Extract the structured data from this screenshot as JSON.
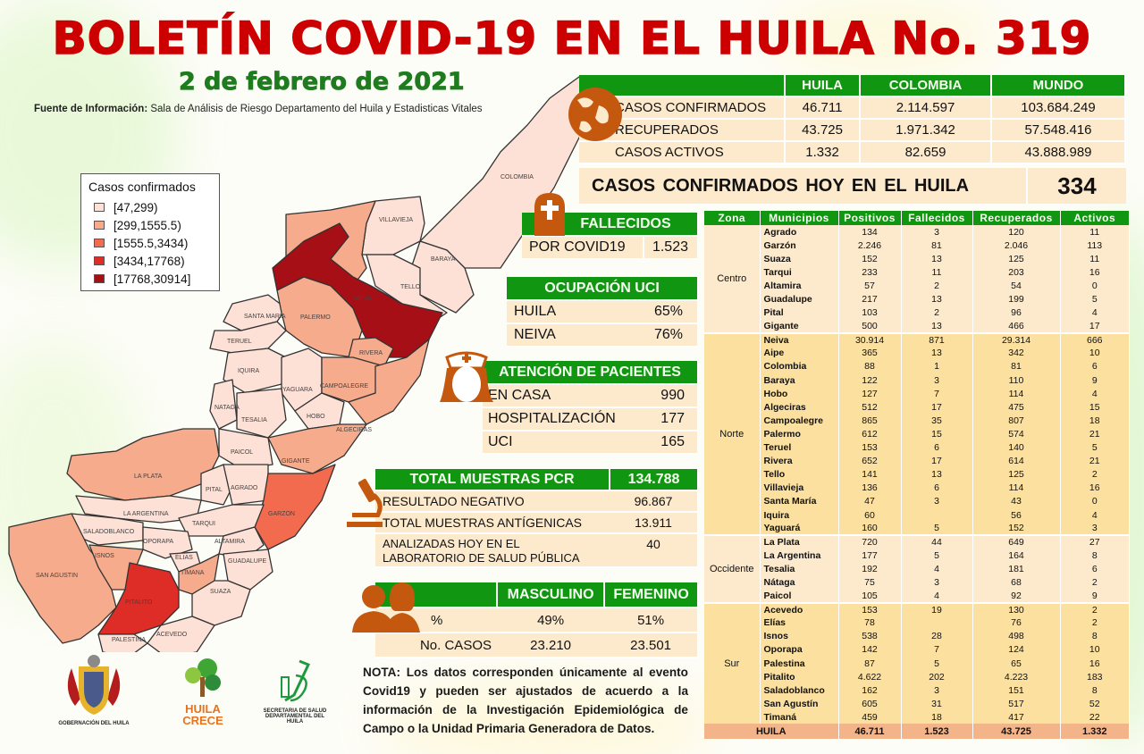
{
  "header": {
    "title": "BOLETÍN COVID-19 EN EL HUILA No. 319",
    "date": "2 de febrero de 2021",
    "source_label": "Fuente de Información:",
    "source_text": "Sala de Análisis de Riesgo Departamento del Huila y Estadisticas Vitales"
  },
  "colors": {
    "title_red": "#cc0000",
    "date_green": "#1e7b1e",
    "header_green": "#119611",
    "cream": "#fdeacc",
    "cream_dark": "#fbe0a0",
    "total_row": "#f4b48a",
    "icon_brown": "#c4580f"
  },
  "summary": {
    "columns": [
      "",
      "HUILA",
      "COLOMBIA",
      "MUNDO"
    ],
    "rows": [
      {
        "label": "CASOS CONFIRMADOS",
        "huila": "46.711",
        "colombia": "2.114.597",
        "mundo": "103.684.249"
      },
      {
        "label": "RECUPERADOS",
        "huila": "43.725",
        "colombia": "1.971.342",
        "mundo": "57.548.416"
      },
      {
        "label": "CASOS ACTIVOS",
        "huila": "1.332",
        "colombia": "82.659",
        "mundo": "43.888.989"
      }
    ],
    "today_label": "CASOS CONFIRMADOS  HOY EN EL HUILA",
    "today_value": "334"
  },
  "fallecidos": {
    "title": "FALLECIDOS",
    "label": "POR COVID19",
    "value": "1.523"
  },
  "uci": {
    "title": "OCUPACIÓN  UCI",
    "rows": [
      {
        "label": "HUILA",
        "value": "65%"
      },
      {
        "label": "NEIVA",
        "value": "76%"
      }
    ]
  },
  "atencion": {
    "title": "ATENCIÓN DE PACIENTES",
    "rows": [
      {
        "label": "EN CASA",
        "value": "990"
      },
      {
        "label": "HOSPITALIZACIÓN",
        "value": "177"
      },
      {
        "label": "UCI",
        "value": "165"
      }
    ]
  },
  "pcr": {
    "title": "TOTAL MUESTRAS  PCR",
    "total": "134.788",
    "rows": [
      {
        "label": "RESULTADO  NEGATIVO",
        "value": "96.867"
      },
      {
        "label": "TOTAL  MUESTRAS  ANTÍGENICAS",
        "value": "13.911"
      },
      {
        "label": "ANALIZADAS HOY EN EL",
        "label2": "LABORATORIO DE SALUD  PÚBLICA",
        "value": "40"
      }
    ]
  },
  "sexo": {
    "columns": [
      "",
      "MASCULINO",
      "FEMENINO"
    ],
    "rows": [
      {
        "label": "%",
        "masculino": "49%",
        "femenino": "51%"
      },
      {
        "label": "No. CASOS",
        "masculino": "23.210",
        "femenino": "23.501"
      }
    ]
  },
  "legend": {
    "title": "Casos confirmados",
    "items": [
      {
        "label": "[47,299)",
        "color": "#fde0d6"
      },
      {
        "label": "[299,1555.5)",
        "color": "#f6ab8d"
      },
      {
        "label": "[1555.5,3434)",
        "color": "#f26b4f"
      },
      {
        "label": "[3434,17768)",
        "color": "#de2c26"
      },
      {
        "label": "[17768,30914]",
        "color": "#a50f15"
      }
    ]
  },
  "map_labels": [
    "COLOMBIA",
    "VILLAVIEJA",
    "BARAYA",
    "TELLO",
    "NEIVA",
    "SANTA MARIA",
    "PALERMO",
    "TERUEL",
    "RIVERA",
    "IQUIRA",
    "YAGUARA",
    "CAMPOALEGRE",
    "NATAGA",
    "TESALIA",
    "HOBO",
    "ALGECIRAS",
    "PAICOL",
    "GIGANTE",
    "LA PLATA",
    "PITAL",
    "AGRADO",
    "GARZON",
    "LA ARGENTINA",
    "TARQUI",
    "SALADOBLANCO",
    "OPORAPA",
    "ALTAMIRA",
    "ISNOS",
    "ELIAS",
    "TIMANA",
    "GUADALUPE",
    "SAN AGUSTIN",
    "SUAZA",
    "PITALITO",
    "ACEVEDO",
    "PALESTINA",
    "AIPE"
  ],
  "municipios": {
    "columns": [
      "Zona",
      "Municipios",
      "Positivos",
      "Fallecidos",
      "Recuperados",
      "Activos"
    ],
    "zones": [
      {
        "zone": "Centro",
        "rows": [
          [
            "Agrado",
            "134",
            "3",
            "120",
            "11"
          ],
          [
            "Garzón",
            "2.246",
            "81",
            "2.046",
            "113"
          ],
          [
            "Suaza",
            "152",
            "13",
            "125",
            "11"
          ],
          [
            "Tarqui",
            "233",
            "11",
            "203",
            "16"
          ],
          [
            "Altamira",
            "57",
            "2",
            "54",
            "0"
          ],
          [
            "Guadalupe",
            "217",
            "13",
            "199",
            "5"
          ],
          [
            "Pital",
            "103",
            "2",
            "96",
            "4"
          ],
          [
            "Gigante",
            "500",
            "13",
            "466",
            "17"
          ]
        ]
      },
      {
        "zone": "Norte",
        "rows": [
          [
            "Neiva",
            "30.914",
            "871",
            "29.314",
            "666"
          ],
          [
            "Aipe",
            "365",
            "13",
            "342",
            "10"
          ],
          [
            "Colombia",
            "88",
            "1",
            "81",
            "6"
          ],
          [
            "Baraya",
            "122",
            "3",
            "110",
            "9"
          ],
          [
            "Hobo",
            "127",
            "7",
            "114",
            "4"
          ],
          [
            "Algeciras",
            "512",
            "17",
            "475",
            "15"
          ],
          [
            "Campoalegre",
            "865",
            "35",
            "807",
            "18"
          ],
          [
            "Palermo",
            "612",
            "15",
            "574",
            "21"
          ],
          [
            "Teruel",
            "153",
            "6",
            "140",
            "5"
          ],
          [
            "Rivera",
            "652",
            "17",
            "614",
            "21"
          ],
          [
            "Tello",
            "141",
            "13",
            "125",
            "2"
          ],
          [
            "Villavieja",
            "136",
            "6",
            "114",
            "16"
          ],
          [
            "Santa María",
            "47",
            "3",
            "43",
            "0"
          ],
          [
            "Iquira",
            "60",
            "",
            "56",
            "4"
          ],
          [
            "Yaguará",
            "160",
            "5",
            "152",
            "3"
          ]
        ]
      },
      {
        "zone": "Occidente",
        "rows": [
          [
            "La Plata",
            "720",
            "44",
            "649",
            "27"
          ],
          [
            "La Argentina",
            "177",
            "5",
            "164",
            "8"
          ],
          [
            "Tesalia",
            "192",
            "4",
            "181",
            "6"
          ],
          [
            "Nátaga",
            "75",
            "3",
            "68",
            "2"
          ],
          [
            "Paicol",
            "105",
            "4",
            "92",
            "9"
          ]
        ]
      },
      {
        "zone": "Sur",
        "rows": [
          [
            "Acevedo",
            "153",
            "19",
            "130",
            "2"
          ],
          [
            "Elías",
            "78",
            "",
            "76",
            "2"
          ],
          [
            "Isnos",
            "538",
            "28",
            "498",
            "8"
          ],
          [
            "Oporapa",
            "142",
            "7",
            "124",
            "10"
          ],
          [
            "Palestina",
            "87",
            "5",
            "65",
            "16"
          ],
          [
            "Pitalito",
            "4.622",
            "202",
            "4.223",
            "183"
          ],
          [
            "Saladoblanco",
            "162",
            "3",
            "151",
            "8"
          ],
          [
            "San Agustín",
            "605",
            "31",
            "517",
            "52"
          ],
          [
            "Timaná",
            "459",
            "18",
            "417",
            "22"
          ]
        ]
      }
    ],
    "total": {
      "label": "HUILA",
      "positivos": "46.711",
      "fallecidos": "1.523",
      "recuperados": "43.725",
      "activos": "1.332"
    }
  },
  "nota": {
    "label": "NOTA:",
    "text": "Los datos corresponden únicamente al evento Covid19 y pueden ser ajustados de acuerdo a la información de la Investigación Epidemiológica de Campo o la Unidad Primaria Generadora de Datos."
  },
  "logos": {
    "gobernacion": "GOBERNACIÓN DEL HUILA",
    "huila_crece_1": "HUILA",
    "huila_crece_2": "CRECE",
    "secretaria_1": "SECRETARIA DE SALUD",
    "secretaria_2": "DEPARTAMENTAL DEL HUILA"
  }
}
